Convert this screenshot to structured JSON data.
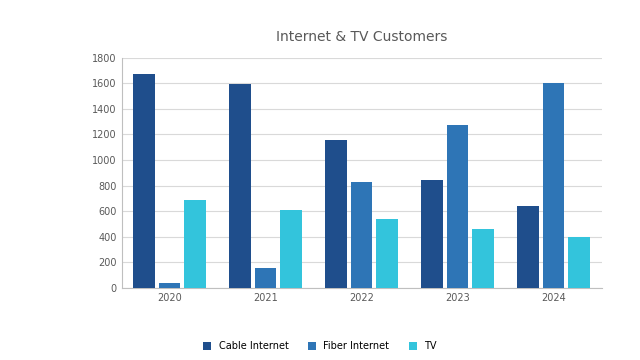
{
  "chart_data": {
    "type": "bar",
    "title": "Internet & TV Customers",
    "categories": [
      "2020",
      "2021",
      "2022",
      "2023",
      "2024"
    ],
    "series": [
      {
        "name": "Cable Internet",
        "color": "#1f4e8c",
        "values": [
          1670,
          1590,
          1160,
          845,
          640
        ]
      },
      {
        "name": "Fiber Internet",
        "color": "#2e75b6",
        "values": [
          40,
          160,
          825,
          1270,
          1600
        ]
      },
      {
        "name": "TV",
        "color": "#33c4dc",
        "values": [
          690,
          610,
          540,
          460,
          395
        ]
      }
    ],
    "ylim": [
      0,
      1800
    ],
    "yticks": [
      0,
      200,
      400,
      600,
      800,
      1000,
      1200,
      1400,
      1600,
      1800
    ],
    "grid": true,
    "legend": "lower center"
  }
}
